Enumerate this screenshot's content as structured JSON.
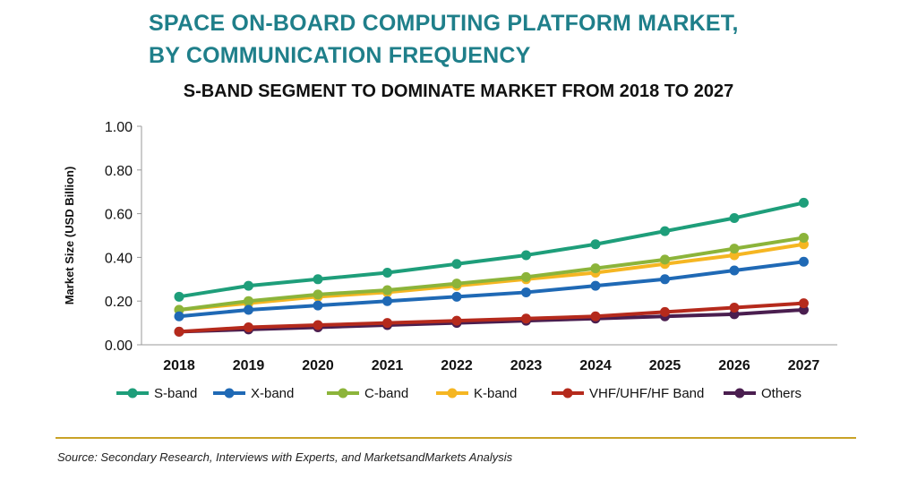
{
  "title_lines": [
    "SPACE ON-BOARD COMPUTING PLATFORM MARKET,",
    "BY COMMUNICATION FREQUENCY"
  ],
  "subtitle": "S-BAND SEGMENT TO DOMINATE MARKET FROM 2018 TO 2027",
  "source": "Source: Secondary Research, Interviews with Experts, and MarketsandMarkets Analysis",
  "accent_rule_color": "#c9a227",
  "chart_data": {
    "type": "line",
    "ylabel": "Market Size (USD Billion)",
    "xlabel": "",
    "ylim": [
      0,
      1.0
    ],
    "yticks": [
      "0.00",
      "0.20",
      "0.40",
      "0.60",
      "0.80",
      "1.00"
    ],
    "categories": [
      "2018",
      "2019",
      "2020",
      "2021",
      "2022",
      "2023",
      "2024",
      "2025",
      "2026",
      "2027"
    ],
    "grid": false,
    "legend_position": "bottom",
    "series": [
      {
        "name": "S-band",
        "color": "#1e9e7a",
        "values": [
          0.22,
          0.27,
          0.3,
          0.33,
          0.37,
          0.41,
          0.46,
          0.52,
          0.58,
          0.65
        ]
      },
      {
        "name": "X-band",
        "color": "#1f69b5",
        "values": [
          0.13,
          0.16,
          0.18,
          0.2,
          0.22,
          0.24,
          0.27,
          0.3,
          0.34,
          0.38
        ]
      },
      {
        "name": "C-band",
        "color": "#8cb43a",
        "values": [
          0.16,
          0.2,
          0.23,
          0.25,
          0.28,
          0.31,
          0.35,
          0.39,
          0.44,
          0.49
        ]
      },
      {
        "name": "K-band",
        "color": "#f5b622",
        "values": [
          0.16,
          0.19,
          0.22,
          0.24,
          0.27,
          0.3,
          0.33,
          0.37,
          0.41,
          0.46
        ]
      },
      {
        "name": "VHF/UHF/HF Band",
        "color": "#b52a1c",
        "values": [
          0.06,
          0.08,
          0.09,
          0.1,
          0.11,
          0.12,
          0.13,
          0.15,
          0.17,
          0.19
        ]
      },
      {
        "name": "Others",
        "color": "#4a1e4f",
        "values": [
          0.06,
          0.07,
          0.08,
          0.09,
          0.1,
          0.11,
          0.12,
          0.13,
          0.14,
          0.16
        ]
      }
    ]
  }
}
